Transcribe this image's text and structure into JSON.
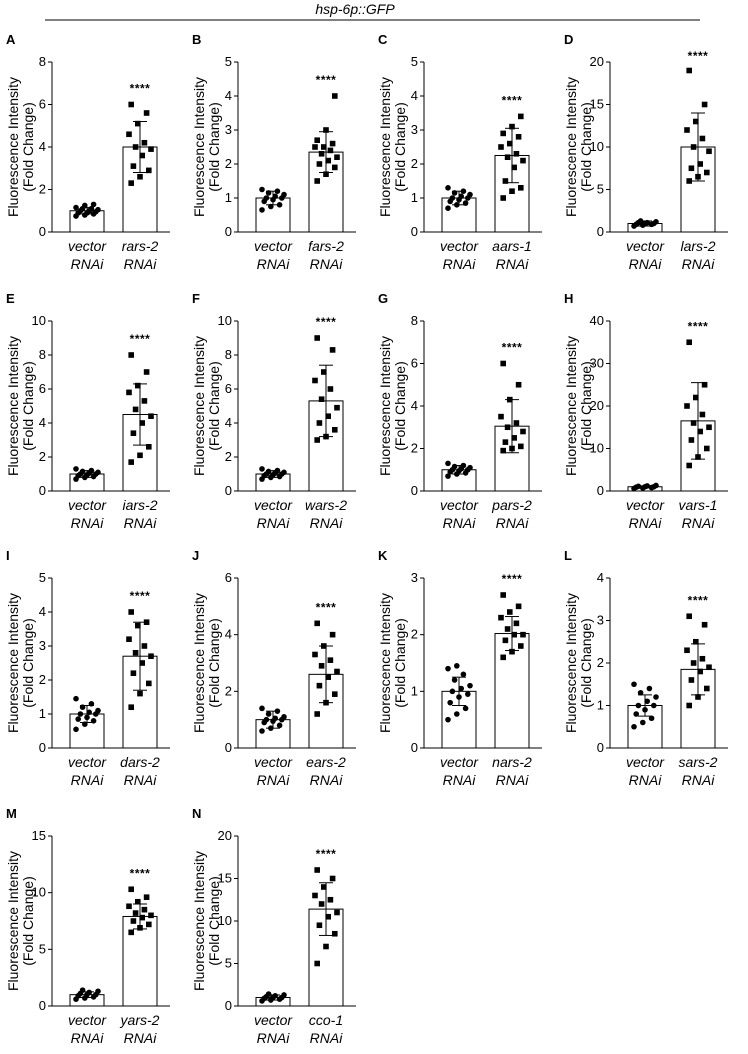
{
  "figure": {
    "header": "hsp-6p::GFP",
    "ylabel_line1": "Fluorescence Intensity",
    "ylabel_line2": "(Fold Change)",
    "significance": "****",
    "control_label": [
      "vector",
      "RNAi"
    ]
  },
  "chart_data": [
    {
      "type": "bar",
      "panel": "A",
      "categories": [
        "vector RNAi",
        "rars-2 RNAi"
      ],
      "xlabels": [
        [
          "vector",
          "RNAi"
        ],
        [
          "rars-2",
          "RNAi"
        ]
      ],
      "values": [
        1.0,
        4.0
      ],
      "errors": [
        0.15,
        1.2
      ],
      "ylim": [
        0,
        8
      ],
      "yticks": [
        0,
        2,
        4,
        6,
        8
      ],
      "control_points": [
        0.75,
        0.8,
        0.85,
        0.9,
        0.9,
        0.95,
        1.0,
        1.0,
        1.05,
        1.1,
        1.1,
        1.15,
        1.25,
        1.3
      ],
      "treatment_points": [
        2.3,
        2.6,
        2.9,
        3.1,
        3.6,
        3.9,
        4.0,
        4.2,
        4.6,
        5.1,
        5.6,
        6.0
      ]
    },
    {
      "type": "bar",
      "panel": "B",
      "categories": [
        "vector RNAi",
        "fars-2 RNAi"
      ],
      "xlabels": [
        [
          "vector",
          "RNAi"
        ],
        [
          "fars-2",
          "RNAi"
        ]
      ],
      "values": [
        1.0,
        2.35
      ],
      "errors": [
        0.2,
        0.6
      ],
      "ylim": [
        0,
        5
      ],
      "yticks": [
        0,
        1,
        2,
        3,
        4,
        5
      ],
      "control_points": [
        0.65,
        0.75,
        0.8,
        0.9,
        0.95,
        1.0,
        1.0,
        1.05,
        1.1,
        1.15,
        1.2,
        1.25
      ],
      "treatment_points": [
        1.5,
        1.7,
        1.9,
        2.0,
        2.1,
        2.2,
        2.3,
        2.4,
        2.5,
        2.5,
        2.6,
        2.7,
        3.0,
        4.0
      ]
    },
    {
      "type": "bar",
      "panel": "C",
      "categories": [
        "vector RNAi",
        "aars-1 RNAi"
      ],
      "xlabels": [
        [
          "vector",
          "RNAi"
        ],
        [
          "aars-1",
          "RNAi"
        ]
      ],
      "values": [
        1.0,
        2.25
      ],
      "errors": [
        0.2,
        0.8
      ],
      "ylim": [
        0,
        5
      ],
      "yticks": [
        0,
        1,
        2,
        3,
        4,
        5
      ],
      "control_points": [
        0.7,
        0.8,
        0.85,
        0.9,
        0.95,
        1.0,
        1.0,
        1.05,
        1.1,
        1.15,
        1.2,
        1.3
      ],
      "treatment_points": [
        1.0,
        1.2,
        1.3,
        1.5,
        1.9,
        2.1,
        2.2,
        2.3,
        2.5,
        2.6,
        2.8,
        2.9,
        3.1,
        3.4
      ]
    },
    {
      "type": "bar",
      "panel": "D",
      "categories": [
        "vector RNAi",
        "lars-2 RNAi"
      ],
      "xlabels": [
        [
          "vector",
          "RNAi"
        ],
        [
          "lars-2",
          "RNAi"
        ]
      ],
      "values": [
        1.0,
        10.0
      ],
      "errors": [
        0.3,
        4.0
      ],
      "ylim": [
        0,
        20
      ],
      "yticks": [
        0,
        5,
        10,
        15,
        20
      ],
      "control_points": [
        0.7,
        0.8,
        0.9,
        0.9,
        1.0,
        1.0,
        1.1,
        1.1,
        1.2,
        1.3
      ],
      "treatment_points": [
        6.0,
        6.5,
        7.0,
        7.5,
        8.0,
        9.5,
        10.0,
        11.0,
        12.0,
        13.0,
        15.0,
        19.0
      ]
    },
    {
      "type": "bar",
      "panel": "E",
      "categories": [
        "vector RNAi",
        "iars-2 RNAi"
      ],
      "xlabels": [
        [
          "vector",
          "RNAi"
        ],
        [
          "iars-2",
          "RNAi"
        ]
      ],
      "values": [
        1.0,
        4.5
      ],
      "errors": [
        0.2,
        1.8
      ],
      "ylim": [
        0,
        10
      ],
      "yticks": [
        0,
        2,
        4,
        6,
        8,
        10
      ],
      "control_points": [
        0.7,
        0.8,
        0.85,
        0.9,
        0.95,
        1.0,
        1.0,
        1.05,
        1.1,
        1.15,
        1.2,
        1.3
      ],
      "treatment_points": [
        1.7,
        2.1,
        2.6,
        3.4,
        4.0,
        4.4,
        4.8,
        5.3,
        5.8,
        6.2,
        7.0,
        8.0
      ]
    },
    {
      "type": "bar",
      "panel": "F",
      "categories": [
        "vector RNAi",
        "wars-2 RNAi"
      ],
      "xlabels": [
        [
          "vector",
          "RNAi"
        ],
        [
          "wars-2",
          "RNAi"
        ]
      ],
      "values": [
        1.0,
        5.3
      ],
      "errors": [
        0.2,
        2.1
      ],
      "ylim": [
        0,
        10
      ],
      "yticks": [
        0,
        2,
        4,
        6,
        8,
        10
      ],
      "control_points": [
        0.7,
        0.8,
        0.85,
        0.9,
        0.95,
        1.0,
        1.0,
        1.05,
        1.1,
        1.15,
        1.2,
        1.3
      ],
      "treatment_points": [
        3.0,
        3.2,
        3.6,
        4.0,
        4.4,
        4.9,
        5.4,
        6.0,
        6.5,
        7.0,
        8.3,
        9.0
      ]
    },
    {
      "type": "bar",
      "panel": "G",
      "categories": [
        "vector RNAi",
        "pars-2 RNAi"
      ],
      "xlabels": [
        [
          "vector",
          "RNAi"
        ],
        [
          "pars-2",
          "RNAi"
        ]
      ],
      "values": [
        1.0,
        3.05
      ],
      "errors": [
        0.2,
        1.25
      ],
      "ylim": [
        0,
        8
      ],
      "yticks": [
        0,
        2,
        4,
        6,
        8
      ],
      "control_points": [
        0.7,
        0.8,
        0.85,
        0.9,
        0.95,
        1.0,
        1.0,
        1.05,
        1.1,
        1.15,
        1.2,
        1.3
      ],
      "treatment_points": [
        1.9,
        2.0,
        2.1,
        2.3,
        2.5,
        2.8,
        3.0,
        3.2,
        3.5,
        4.3,
        5.0,
        6.0
      ]
    },
    {
      "type": "bar",
      "panel": "H",
      "categories": [
        "vector RNAi",
        "vars-1 RNAi"
      ],
      "xlabels": [
        [
          "vector",
          "RNAi"
        ],
        [
          "vars-1",
          "RNAi"
        ]
      ],
      "values": [
        1.0,
        16.5
      ],
      "errors": [
        0.2,
        9.0
      ],
      "ylim": [
        0,
        40
      ],
      "yticks": [
        0,
        10,
        20,
        30,
        40
      ],
      "control_points": [
        0.6,
        0.7,
        0.8,
        0.9,
        1.0,
        1.0,
        1.1,
        1.2,
        1.3
      ],
      "treatment_points": [
        6.0,
        8.0,
        10.0,
        12.0,
        14.0,
        15.0,
        16.0,
        18.0,
        20.0,
        22.0,
        25.0,
        35.0
      ]
    },
    {
      "type": "bar",
      "panel": "I",
      "categories": [
        "vector RNAi",
        "dars-2 RNAi"
      ],
      "xlabels": [
        [
          "vector",
          "RNAi"
        ],
        [
          "dars-2",
          "RNAi"
        ]
      ],
      "values": [
        1.0,
        2.7
      ],
      "errors": [
        0.25,
        1.0
      ],
      "ylim": [
        0,
        5
      ],
      "yticks": [
        0,
        1,
        2,
        3,
        4,
        5
      ],
      "control_points": [
        0.55,
        0.7,
        0.8,
        0.85,
        0.9,
        1.0,
        1.0,
        1.05,
        1.1,
        1.2,
        1.3,
        1.45
      ],
      "treatment_points": [
        1.2,
        1.6,
        1.9,
        2.2,
        2.5,
        2.7,
        2.8,
        3.0,
        3.2,
        3.6,
        3.7,
        4.0
      ]
    },
    {
      "type": "bar",
      "panel": "J",
      "categories": [
        "vector RNAi",
        "ears-2 RNAi"
      ],
      "xlabels": [
        [
          "vector",
          "RNAi"
        ],
        [
          "ears-2",
          "RNAi"
        ]
      ],
      "values": [
        1.0,
        2.6
      ],
      "errors": [
        0.3,
        1.0
      ],
      "ylim": [
        0,
        6
      ],
      "yticks": [
        0,
        2,
        4,
        6
      ],
      "control_points": [
        0.6,
        0.7,
        0.8,
        0.9,
        0.95,
        1.0,
        1.0,
        1.05,
        1.1,
        1.2,
        1.3,
        1.4
      ],
      "treatment_points": [
        1.2,
        1.6,
        1.9,
        2.2,
        2.5,
        2.7,
        2.9,
        3.1,
        3.3,
        3.6,
        4.0,
        4.4
      ]
    },
    {
      "type": "bar",
      "panel": "K",
      "categories": [
        "vector RNAi",
        "nars-2 RNAi"
      ],
      "xlabels": [
        [
          "vector",
          "RNAi"
        ],
        [
          "nars-2",
          "RNAi"
        ]
      ],
      "values": [
        1.0,
        2.02
      ],
      "errors": [
        0.25,
        0.3
      ],
      "ylim": [
        0,
        3
      ],
      "yticks": [
        0,
        1,
        2,
        3
      ],
      "control_points": [
        0.5,
        0.6,
        0.7,
        0.8,
        0.9,
        0.95,
        1.0,
        1.05,
        1.1,
        1.2,
        1.3,
        1.4,
        1.45
      ],
      "treatment_points": [
        1.6,
        1.7,
        1.8,
        1.9,
        2.0,
        2.0,
        2.1,
        2.2,
        2.3,
        2.4,
        2.5,
        2.7
      ]
    },
    {
      "type": "bar",
      "panel": "L",
      "categories": [
        "vector RNAi",
        "sars-2 RNAi"
      ],
      "xlabels": [
        [
          "vector",
          "RNAi"
        ],
        [
          "sars-2",
          "RNAi"
        ]
      ],
      "values": [
        1.0,
        1.85
      ],
      "errors": [
        0.25,
        0.6
      ],
      "ylim": [
        0,
        4
      ],
      "yticks": [
        0,
        1,
        2,
        3,
        4
      ],
      "control_points": [
        0.5,
        0.6,
        0.7,
        0.8,
        0.9,
        1.0,
        1.0,
        1.1,
        1.2,
        1.3,
        1.4,
        1.5
      ],
      "treatment_points": [
        1.0,
        1.2,
        1.4,
        1.6,
        1.8,
        1.9,
        2.0,
        2.1,
        2.3,
        2.5,
        2.9,
        3.1
      ]
    },
    {
      "type": "bar",
      "panel": "M",
      "categories": [
        "vector RNAi",
        "yars-2 RNAi"
      ],
      "xlabels": [
        [
          "vector",
          "RNAi"
        ],
        [
          "yars-2",
          "RNAi"
        ]
      ],
      "values": [
        1.0,
        7.9
      ],
      "errors": [
        0.25,
        1.1
      ],
      "ylim": [
        0,
        15
      ],
      "yticks": [
        0,
        5,
        10,
        15
      ],
      "control_points": [
        0.6,
        0.7,
        0.8,
        0.9,
        1.0,
        1.0,
        1.1,
        1.2,
        1.3,
        1.4
      ],
      "treatment_points": [
        6.5,
        6.9,
        7.2,
        7.5,
        7.8,
        8.0,
        8.2,
        8.5,
        8.8,
        9.2,
        9.6,
        10.3
      ]
    },
    {
      "type": "bar",
      "panel": "N",
      "categories": [
        "vector RNAi",
        "cco-1 RNAi"
      ],
      "xlabels": [
        [
          "vector",
          "RNAi"
        ],
        [
          "cco-1",
          "RNAi"
        ]
      ],
      "values": [
        1.0,
        11.4
      ],
      "errors": [
        0.3,
        3.1
      ],
      "ylim": [
        0,
        20
      ],
      "yticks": [
        0,
        5,
        10,
        15,
        20
      ],
      "control_points": [
        0.6,
        0.7,
        0.8,
        0.9,
        1.0,
        1.0,
        1.1,
        1.2,
        1.3,
        1.4
      ],
      "treatment_points": [
        5.0,
        7.0,
        8.5,
        9.5,
        10.5,
        11.0,
        12.0,
        12.5,
        13.0,
        14.0,
        15.0,
        16.0
      ]
    }
  ]
}
